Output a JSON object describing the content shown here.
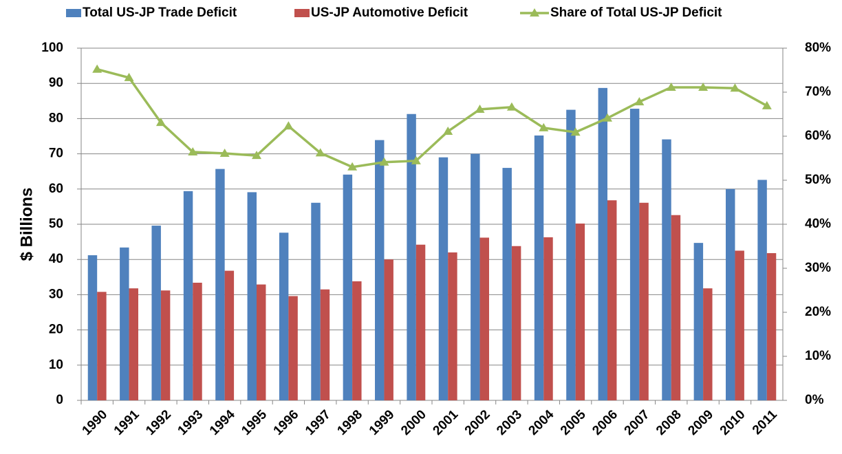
{
  "chart_data": {
    "type": "bar-line",
    "y_label": "$ Billions",
    "categories": [
      "1990",
      "1991",
      "1992",
      "1993",
      "1994",
      "1995",
      "1996",
      "1997",
      "1998",
      "1999",
      "2000",
      "2001",
      "2002",
      "2003",
      "2004",
      "2005",
      "2006",
      "2007",
      "2008",
      "2009",
      "2010",
      "2011"
    ],
    "series": [
      {
        "name": "Total US-JP Trade Deficit",
        "type": "bar",
        "color": "#4f81bd",
        "values": [
          41.2,
          43.4,
          49.6,
          59.4,
          65.7,
          59.1,
          47.6,
          56.1,
          64.1,
          73.9,
          81.3,
          69.0,
          70.0,
          66.0,
          75.2,
          82.5,
          88.7,
          82.8,
          74.1,
          44.7,
          60.0,
          62.6
        ]
      },
      {
        "name": "US-JP Automotive Deficit",
        "type": "bar",
        "color": "#c0504d",
        "values": [
          30.8,
          31.8,
          31.2,
          33.4,
          36.8,
          32.9,
          29.6,
          31.5,
          33.8,
          40.0,
          44.2,
          42.0,
          46.2,
          43.8,
          46.3,
          50.2,
          56.8,
          56.1,
          52.6,
          31.8,
          42.5,
          41.8
        ]
      },
      {
        "name": "Share of Total US-JP Deficit",
        "type": "line",
        "axis": "y2",
        "color": "#9bbb59",
        "values": [
          75.2,
          73.3,
          63.1,
          56.4,
          56.1,
          55.6,
          62.3,
          56.2,
          53.0,
          54.1,
          54.4,
          61.1,
          66.1,
          66.6,
          61.9,
          60.9,
          64.1,
          67.8,
          71.1,
          71.1,
          70.9,
          66.9
        ]
      }
    ],
    "ylim": [
      0,
      100
    ],
    "yticks": [
      0,
      10,
      20,
      30,
      40,
      50,
      60,
      70,
      80,
      90,
      100
    ],
    "y2lim": [
      0,
      80
    ],
    "y2ticks": [
      {
        "value": 0,
        "label": "0%"
      },
      {
        "value": 10,
        "label": "10%"
      },
      {
        "value": 20,
        "label": "20%"
      },
      {
        "value": 30,
        "label": "30%"
      },
      {
        "value": 40,
        "label": "40%"
      },
      {
        "value": 50,
        "label": "50%"
      },
      {
        "value": 60,
        "label": "60%"
      },
      {
        "value": 70,
        "label": "70%"
      },
      {
        "value": 80,
        "label": "80%"
      }
    ],
    "grid": true,
    "legend": "top"
  }
}
